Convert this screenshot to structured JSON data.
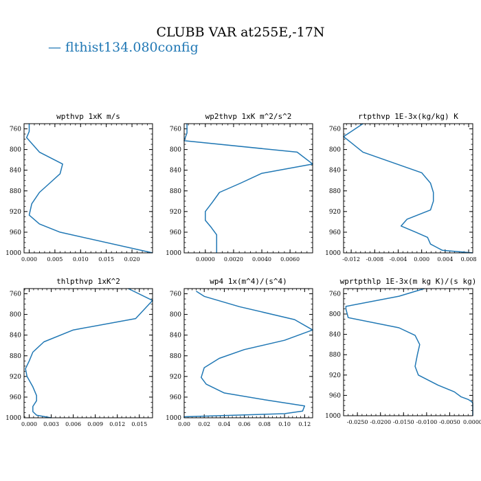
{
  "title": "CLUBB VAR at255E,-17N",
  "legend": {
    "label": "— flthist134.080config",
    "color": "#1f77b4"
  },
  "chart_data": [
    {
      "type": "line",
      "title": "wpthvp  1xK m/s",
      "xlim": [
        -0.001,
        0.024
      ],
      "ylim": [
        1000,
        750
      ],
      "x_ticks": [
        "0.000",
        "0.005",
        "0.010",
        "0.015",
        "0.020"
      ],
      "x_tick_values": [
        0.0,
        0.005,
        0.01,
        0.015,
        0.02
      ],
      "y_ticks": [
        "760",
        "800",
        "840",
        "880",
        "920",
        "960",
        "1000"
      ],
      "y_tick_values": [
        760,
        800,
        840,
        880,
        920,
        960,
        1000
      ],
      "series": [
        {
          "color": "#1f77b4",
          "x": [
            0.0,
            0.0,
            -0.0005,
            0.002,
            0.0065,
            0.006,
            0.004,
            0.002,
            0.0005,
            0.0,
            0.002,
            0.006,
            0.024
          ],
          "y": [
            750,
            765,
            777,
            805,
            828,
            847,
            865,
            883,
            905,
            927,
            944,
            960,
            1000
          ]
        }
      ]
    },
    {
      "type": "line",
      "title": "wp2thvp  1xK m^2/s^2",
      "xlim": [
        -0.0015,
        0.0076
      ],
      "ylim": [
        1000,
        750
      ],
      "x_ticks": [
        "0.0000",
        "0.0020",
        "0.0040",
        "0.0060"
      ],
      "x_tick_values": [
        0.0,
        0.002,
        0.004,
        0.006
      ],
      "y_ticks": [
        "760",
        "800",
        "840",
        "880",
        "920",
        "960",
        "1000"
      ],
      "y_tick_values": [
        760,
        800,
        840,
        880,
        920,
        960,
        1000
      ],
      "series": [
        {
          "color": "#1f77b4",
          "x": [
            -0.0013,
            -0.0013,
            -0.0015,
            0.0065,
            0.0076,
            0.004,
            0.0025,
            0.001,
            0.0005,
            0.0,
            0.0,
            0.0004,
            0.0008,
            0.0008
          ],
          "y": [
            750,
            768,
            783,
            805,
            828,
            846,
            865,
            883,
            902,
            920,
            937,
            950,
            965,
            1000
          ]
        }
      ]
    },
    {
      "type": "line",
      "title": "rtpthvp  1E-3x(kg/kg) K",
      "xlim": [
        -0.0133,
        0.0087
      ],
      "ylim": [
        1000,
        750
      ],
      "x_ticks": [
        "-0.012",
        "-0.008",
        "-0.004",
        "0.000",
        "0.004",
        "0.008"
      ],
      "x_tick_values": [
        -0.012,
        -0.008,
        -0.004,
        0.0,
        0.004,
        0.008
      ],
      "y_ticks": [
        "760",
        "800",
        "840",
        "880",
        "920",
        "960",
        "1000"
      ],
      "y_tick_values": [
        760,
        800,
        840,
        880,
        920,
        960,
        1000
      ],
      "series": [
        {
          "color": "#1f77b4",
          "x": [
            -0.01,
            -0.0133,
            -0.01,
            0.0,
            0.0015,
            0.002,
            0.002,
            0.0015,
            -0.0025,
            -0.0035,
            -0.001,
            0.001,
            0.0015,
            0.0035,
            0.0087
          ],
          "y": [
            750,
            775,
            805,
            845,
            865,
            883,
            900,
            917,
            935,
            948,
            960,
            970,
            983,
            995,
            1000
          ]
        }
      ]
    },
    {
      "type": "line",
      "title": "thlpthvp  1xK^2",
      "xlim": [
        -0.0007,
        0.0168
      ],
      "ylim": [
        1000,
        750
      ],
      "x_ticks": [
        "0.000",
        "0.003",
        "0.006",
        "0.009",
        "0.012",
        "0.015"
      ],
      "x_tick_values": [
        0.0,
        0.003,
        0.006,
        0.009,
        0.012,
        0.015
      ],
      "y_ticks": [
        "760",
        "800",
        "840",
        "880",
        "920",
        "960",
        "1000"
      ],
      "y_tick_values": [
        760,
        800,
        840,
        880,
        920,
        960,
        1000
      ],
      "series": [
        {
          "color": "#1f77b4",
          "x": [
            0.0135,
            0.0168,
            0.0145,
            0.006,
            0.002,
            0.0005,
            0.0,
            -0.0005,
            -0.0003,
            0.0005,
            0.001,
            0.001,
            0.0005,
            0.0005,
            0.001,
            0.003
          ],
          "y": [
            750,
            773,
            808,
            830,
            853,
            873,
            890,
            905,
            920,
            940,
            957,
            967,
            978,
            988,
            995,
            1000
          ]
        }
      ]
    },
    {
      "type": "line",
      "title": "wp4  1x(m^4)/(s^4)",
      "xlim": [
        0.0,
        0.128
      ],
      "ylim": [
        1000,
        750
      ],
      "x_ticks": [
        "0.00",
        "0.02",
        "0.04",
        "0.06",
        "0.08",
        "0.10",
        "0.12"
      ],
      "x_tick_values": [
        0.0,
        0.02,
        0.04,
        0.06,
        0.08,
        0.1,
        0.12
      ],
      "y_ticks": [
        "760",
        "800",
        "840",
        "880",
        "920",
        "960",
        "1000"
      ],
      "y_tick_values": [
        760,
        800,
        840,
        880,
        920,
        960,
        1000
      ],
      "series": [
        {
          "color": "#1f77b4",
          "x": [
            0.012,
            0.02,
            0.055,
            0.11,
            0.128,
            0.1,
            0.06,
            0.035,
            0.02,
            0.017,
            0.022,
            0.04,
            0.08,
            0.12,
            0.118,
            0.1,
            0.0,
            0.0
          ],
          "y": [
            755,
            765,
            785,
            810,
            830,
            850,
            868,
            885,
            903,
            922,
            935,
            952,
            965,
            977,
            987,
            992,
            998,
            1000
          ]
        }
      ]
    },
    {
      "type": "line",
      "title": "wprtpthlp  1E-3x(m kg K)/(s kg)",
      "xlim": [
        -0.028,
        0.0
      ],
      "ylim": [
        1000,
        750
      ],
      "x_ticks": [
        "-0.0250",
        "-0.0200",
        "-0.0150",
        "-0.0100",
        "-0.0050",
        "0.0000"
      ],
      "x_tick_values": [
        -0.025,
        -0.02,
        -0.015,
        -0.01,
        -0.005,
        0.0
      ],
      "y_ticks": [
        "760",
        "800",
        "840",
        "880",
        "920",
        "960",
        "1000"
      ],
      "y_tick_values": [
        760,
        800,
        840,
        880,
        920,
        960,
        1000
      ],
      "series": [
        {
          "color": "#1f77b4",
          "x": [
            -0.0105,
            -0.016,
            -0.0275,
            -0.0275,
            -0.027,
            -0.016,
            -0.0125,
            -0.0115,
            -0.012,
            -0.0125,
            -0.0118,
            -0.0075,
            -0.004,
            -0.0025,
            -0.001,
            -0.0003,
            0.0,
            0.0
          ],
          "y": [
            750,
            765,
            785,
            790,
            807,
            827,
            842,
            860,
            880,
            903,
            920,
            940,
            953,
            963,
            968,
            972,
            975,
            1000
          ]
        }
      ]
    }
  ]
}
